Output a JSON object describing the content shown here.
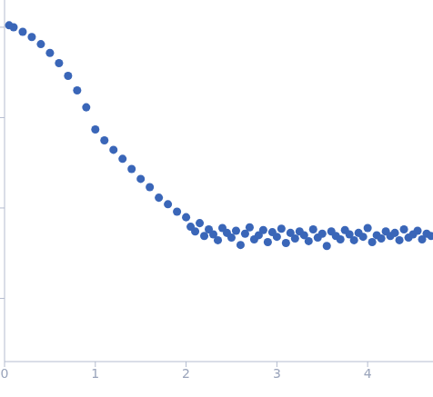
{
  "chart_data": {
    "type": "scatter",
    "log": "y",
    "tick_labels": "x",
    "grid": false,
    "marker": "circle",
    "color": "#3a66b8",
    "xlim": [
      0,
      4.72
    ],
    "xticks": [
      0,
      1,
      2,
      3,
      4
    ],
    "ylim": [
      0.0002,
      2
    ],
    "yticks": [
      0.001,
      0.01,
      0.1,
      1
    ],
    "x": [
      0.05,
      0.1,
      0.2,
      0.3,
      0.4,
      0.5,
      0.6,
      0.7,
      0.8,
      0.9,
      1.0,
      1.1,
      1.2,
      1.3,
      1.4,
      1.5,
      1.6,
      1.7,
      1.8,
      1.9,
      2.0,
      2.05,
      2.1,
      2.15,
      2.2,
      2.25,
      2.3,
      2.35,
      2.4,
      2.45,
      2.5,
      2.55,
      2.6,
      2.65,
      2.7,
      2.75,
      2.8,
      2.85,
      2.9,
      2.95,
      3.0,
      3.05,
      3.1,
      3.15,
      3.2,
      3.25,
      3.3,
      3.35,
      3.4,
      3.45,
      3.5,
      3.55,
      3.6,
      3.65,
      3.7,
      3.75,
      3.8,
      3.85,
      3.9,
      3.95,
      4.0,
      4.05,
      4.1,
      4.15,
      4.2,
      4.25,
      4.3,
      4.35,
      4.4,
      4.45,
      4.5,
      4.55,
      4.6,
      4.65,
      4.7
    ],
    "values": [
      1.05,
      1.0,
      0.89,
      0.78,
      0.65,
      0.52,
      0.4,
      0.29,
      0.2,
      0.13,
      0.074,
      0.056,
      0.044,
      0.035,
      0.027,
      0.021,
      0.017,
      0.013,
      0.011,
      0.0091,
      0.0079,
      0.0062,
      0.0055,
      0.0068,
      0.0049,
      0.0058,
      0.0051,
      0.0044,
      0.006,
      0.0053,
      0.0047,
      0.0056,
      0.0039,
      0.0052,
      0.0061,
      0.0045,
      0.005,
      0.0057,
      0.0042,
      0.0054,
      0.0048,
      0.0059,
      0.0041,
      0.0053,
      0.0046,
      0.0055,
      0.005,
      0.0043,
      0.0058,
      0.0047,
      0.0052,
      0.0038,
      0.0055,
      0.0049,
      0.0045,
      0.0057,
      0.0051,
      0.0044,
      0.0053,
      0.0048,
      0.006,
      0.0042,
      0.005,
      0.0046,
      0.0055,
      0.0049,
      0.0053,
      0.0044,
      0.0058,
      0.0047,
      0.0051,
      0.0056,
      0.0045,
      0.0052,
      0.0049
    ]
  }
}
